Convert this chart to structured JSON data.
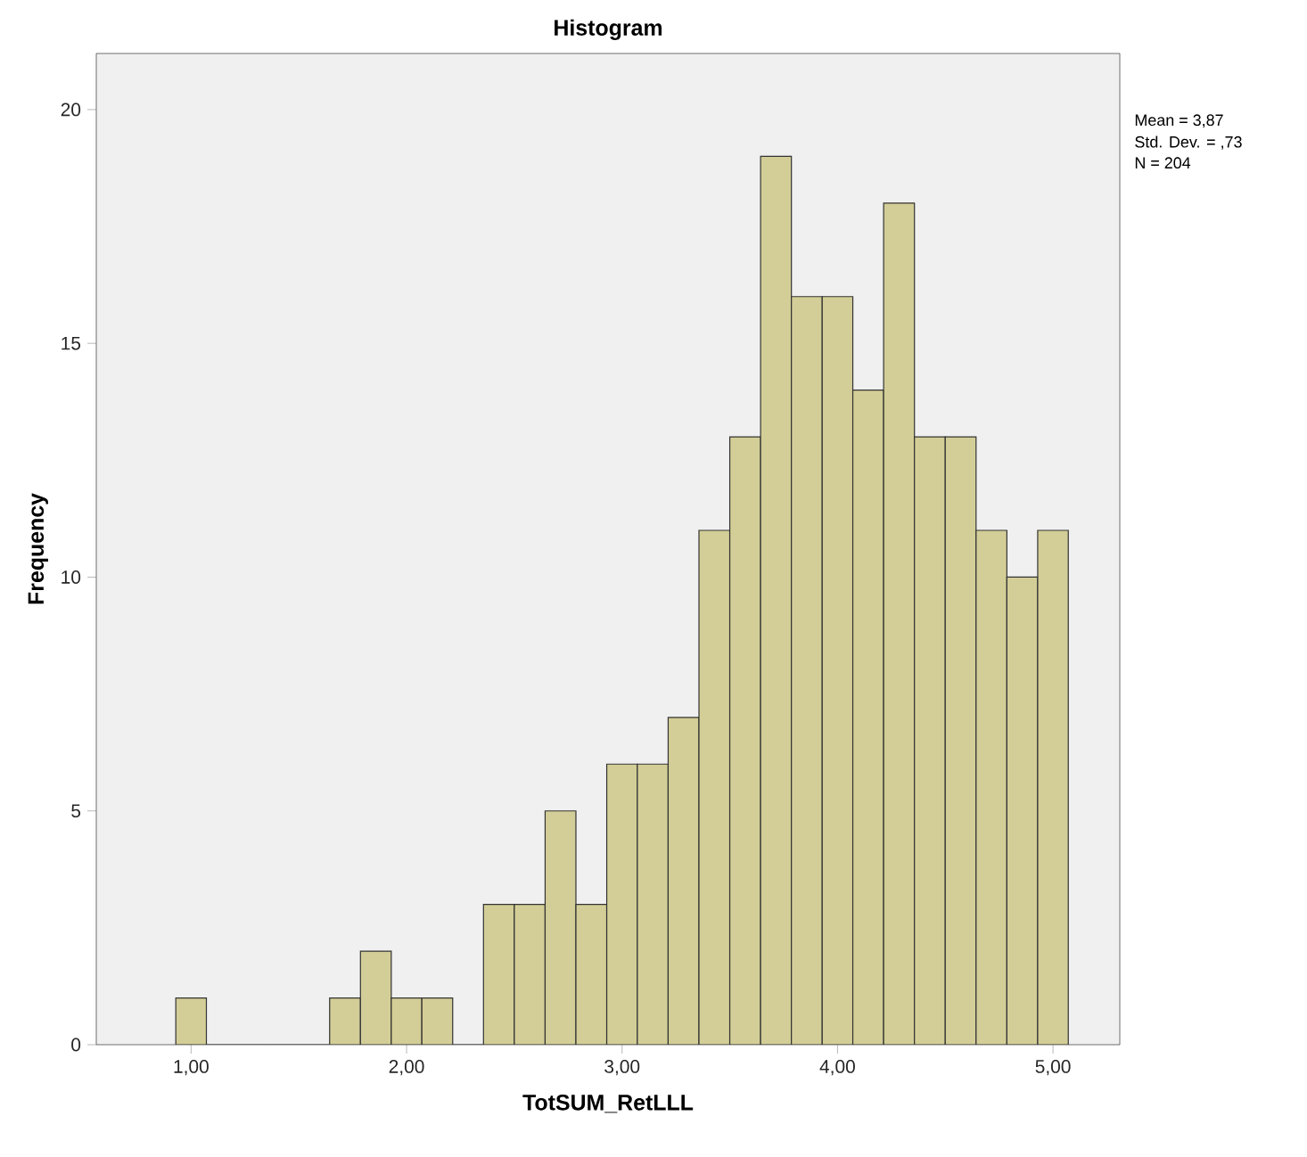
{
  "chart_data": {
    "type": "histogram",
    "title": "Histogram",
    "xlabel": "TotSUM_RetLLL",
    "ylabel": "Frequency",
    "bins": [
      0.929,
      1.071,
      1.214,
      1.357,
      1.5,
      1.643,
      1.786,
      1.929,
      2.071,
      2.214,
      2.357,
      2.5,
      2.643,
      2.786,
      2.929,
      3.071,
      3.214,
      3.357,
      3.5,
      3.643,
      3.786,
      3.929,
      4.071,
      4.214,
      4.357,
      4.5,
      4.643,
      4.786,
      4.929,
      5.071
    ],
    "values": [
      1,
      0,
      0,
      0,
      0,
      1,
      2,
      1,
      1,
      0,
      3,
      3,
      5,
      3,
      6,
      6,
      7,
      11,
      13,
      19,
      16,
      16,
      14,
      18,
      13,
      13,
      11,
      10,
      11
    ],
    "color": "#d3ce97",
    "xlim": [
      0.56,
      5.31
    ],
    "ylim": [
      0,
      21.2
    ],
    "xticks": [
      {
        "value": 1,
        "label": "1,00"
      },
      {
        "value": 2,
        "label": "2,00"
      },
      {
        "value": 3,
        "label": "3,00"
      },
      {
        "value": 4,
        "label": "4,00"
      },
      {
        "value": 5,
        "label": "5,00"
      }
    ],
    "yticks": [
      0,
      5,
      10,
      15,
      20
    ],
    "annotations": [
      "Mean = 3,87",
      "Std. Dev. = ,73",
      "N = 204"
    ]
  }
}
